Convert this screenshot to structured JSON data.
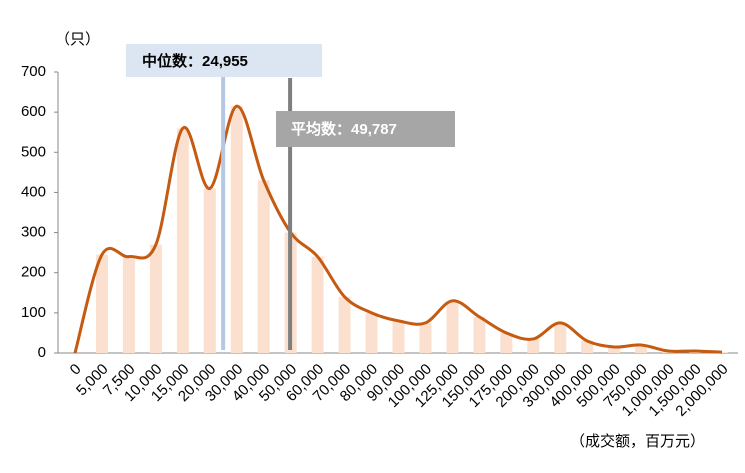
{
  "chart_data": {
    "type": "bar-line",
    "ylabel": "（只）",
    "xlabel": "（成交额，百万元）",
    "categories": [
      "0",
      "5,000",
      "7,500",
      "10,000",
      "15,000",
      "20,000",
      "30,000",
      "40,000",
      "50,000",
      "60,000",
      "70,000",
      "80,000",
      "90,000",
      "100,000",
      "125,000",
      "150,000",
      "175,000",
      "200,000",
      "300,000",
      "400,000",
      "500,000",
      "750,000",
      "1,000,000",
      "1,500,000",
      "2,000,000"
    ],
    "values": [
      0,
      245,
      240,
      270,
      560,
      410,
      615,
      430,
      300,
      240,
      140,
      100,
      80,
      75,
      130,
      90,
      50,
      35,
      75,
      30,
      15,
      20,
      5,
      5,
      2
    ],
    "bar_color": "#fbe0cf",
    "line_color": "#c55a11",
    "ylim": [
      0,
      700
    ],
    "yticks": [
      0,
      100,
      200,
      300,
      400,
      500,
      600,
      700
    ],
    "annotations": [
      {
        "name": "中位数：",
        "value": 24955,
        "value_label": "24,955",
        "color": "#b4c7e7"
      },
      {
        "name": "平均数：",
        "value": 49787,
        "value_label": "49,787",
        "color": "#7f7f7f"
      }
    ]
  }
}
